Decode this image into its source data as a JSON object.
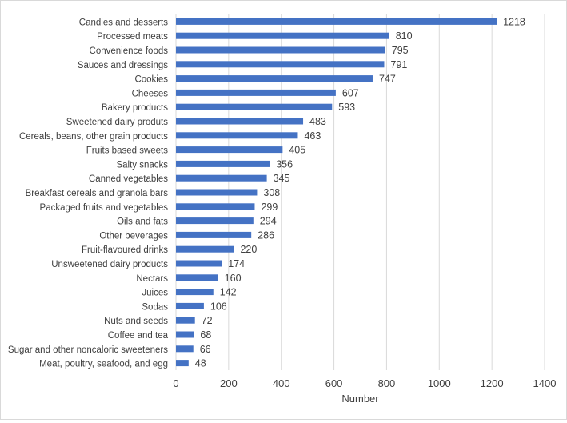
{
  "chart_data": {
    "type": "bar",
    "orientation": "horizontal",
    "categories": [
      "Candies and desserts",
      "Processed meats",
      "Convenience foods",
      "Sauces and dressings",
      "Cookies",
      "Cheeses",
      "Bakery products",
      "Sweetened dairy produts",
      "Cereals, beans, other grain products",
      "Fruits based sweets",
      "Salty snacks",
      "Canned vegetables",
      "Breakfast cereals and granola bars",
      "Packaged fruits and vegetables",
      "Oils and fats",
      "Other beverages",
      "Fruit-flavoured drinks",
      "Unsweetened dairy products",
      "Nectars",
      "Juices",
      "Sodas",
      "Nuts and seeds",
      "Coffee and tea",
      "Sugar and other noncaloric sweeteners",
      "Meat, poultry, seafood, and egg"
    ],
    "values": [
      1218,
      810,
      795,
      791,
      747,
      607,
      593,
      483,
      463,
      405,
      356,
      345,
      308,
      299,
      294,
      286,
      220,
      174,
      160,
      142,
      106,
      72,
      68,
      66,
      48
    ],
    "xlabel": "Number",
    "ylabel": "",
    "xlim": [
      0,
      1400
    ],
    "xticks": [
      0,
      200,
      400,
      600,
      800,
      1000,
      1200,
      1400
    ],
    "grid": "vertical",
    "data_labels": true,
    "bar_color": "#4472c4",
    "legend": "none"
  }
}
